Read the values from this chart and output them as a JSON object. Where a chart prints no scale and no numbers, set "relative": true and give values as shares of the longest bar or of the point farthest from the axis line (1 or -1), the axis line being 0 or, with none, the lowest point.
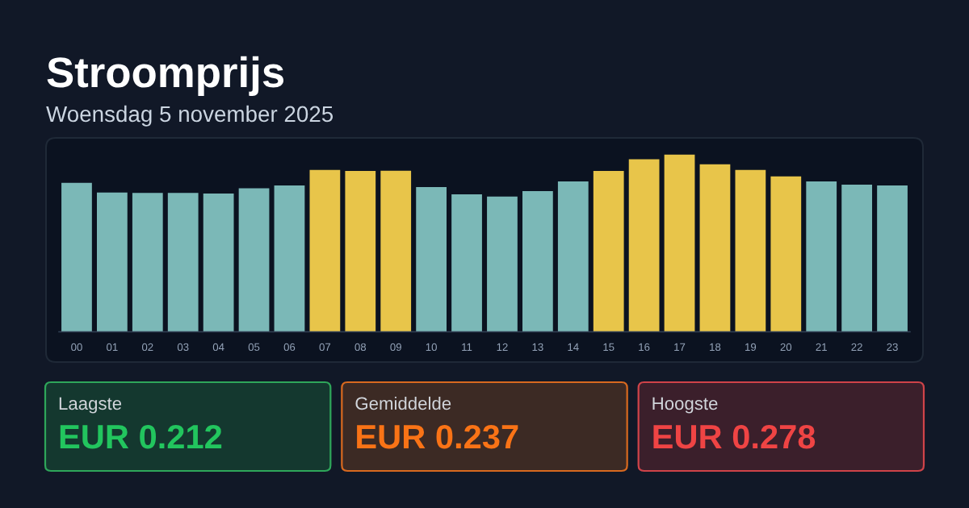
{
  "chart_data": [
    {
      "type": "bar",
      "title": "Stroomprijs",
      "subtitle": "Woensdag 5 november 2025",
      "categories": [
        "00",
        "01",
        "02",
        "03",
        "04",
        "05",
        "06",
        "07",
        "08",
        "09",
        "10",
        "11",
        "12",
        "13",
        "14",
        "15",
        "16",
        "17",
        "18",
        "19",
        "20",
        "21",
        "22",
        "23"
      ],
      "values": [
        0.841,
        0.787,
        0.784,
        0.784,
        0.781,
        0.81,
        0.826,
        0.914,
        0.908,
        0.909,
        0.817,
        0.776,
        0.764,
        0.794,
        0.849,
        0.908,
        0.974,
        1,
        0.946,
        0.914,
        0.878,
        0.849,
        0.831,
        0.826
      ],
      "colors": [
        "#7bb8b7",
        "#7bb8b7",
        "#7bb8b7",
        "#7bb8b7",
        "#7bb8b7",
        "#7bb8b7",
        "#7bb8b7",
        "#e8c54a",
        "#e8c54a",
        "#e8c54a",
        "#7bb8b7",
        "#7bb8b7",
        "#7bb8b7",
        "#7bb8b7",
        "#7bb8b7",
        "#e8c54a",
        "#e8c54a",
        "#e8c54a",
        "#e8c54a",
        "#e8c54a",
        "#e8c54a",
        "#7bb8b7",
        "#7bb8b7",
        "#7bb8b7"
      ],
      "relative": true,
      "tick_labels": "x"
    },
    {
      "type": "other",
      "annotations": [
        "Laagste",
        "EUR 0.212",
        "Gemiddelde",
        "EUR 0.237",
        "Hoogste",
        "EUR 0.278"
      ]
    }
  ]
}
